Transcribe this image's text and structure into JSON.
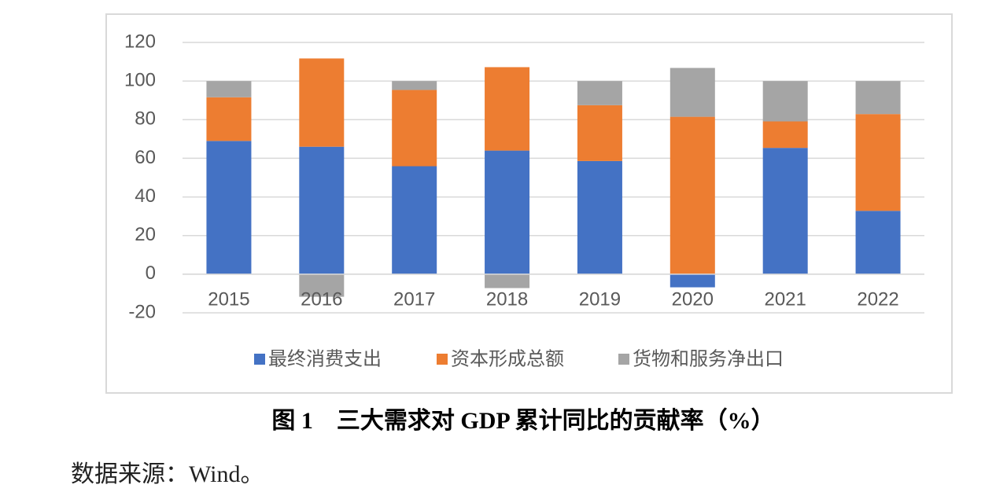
{
  "chart_data": {
    "type": "stacked-bar",
    "title": "图 1　三大需求对 GDP 累计同比的贡献率（%）",
    "source": "数据来源：Wind。",
    "categories": [
      "2015",
      "2016",
      "2017",
      "2018",
      "2019",
      "2020",
      "2021",
      "2022"
    ],
    "series": [
      {
        "name": "最终消费支出",
        "color": "#4472c4",
        "values": [
          69,
          66,
          55.9,
          64,
          58.6,
          -6.8,
          65.4,
          32.8
        ]
      },
      {
        "name": "资本形成总额",
        "color": "#ed7d31",
        "values": [
          22.6,
          45.7,
          39.5,
          43.2,
          28.9,
          81.5,
          13.7,
          50.1
        ]
      },
      {
        "name": "货物和服务净出口",
        "color": "#a5a5a5",
        "values": [
          8.4,
          -11.7,
          4.6,
          -7.2,
          12.5,
          25.3,
          20.9,
          17.1
        ]
      }
    ],
    "ylim": [
      -20,
      120
    ],
    "yticks": [
      -20,
      0,
      20,
      40,
      60,
      80,
      100,
      120
    ],
    "grid": true,
    "legend": "bottom"
  }
}
